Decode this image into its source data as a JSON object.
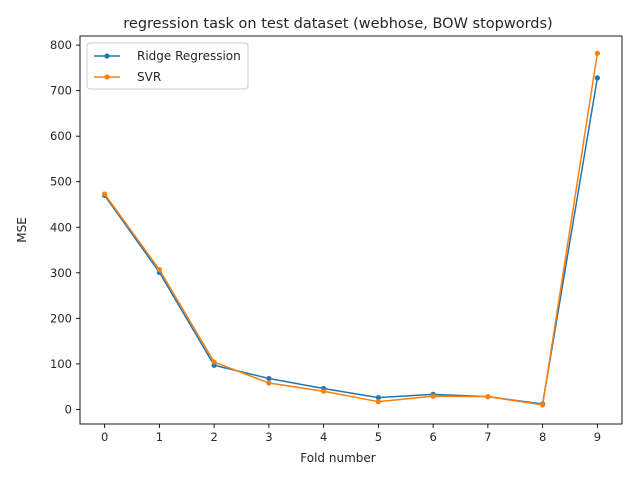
{
  "chart_data": {
    "type": "line",
    "title": "regression task on test dataset (webhose, BOW stopwords)",
    "xlabel": "Fold number",
    "ylabel": "MSE",
    "x": [
      0,
      1,
      2,
      3,
      4,
      5,
      6,
      7,
      8,
      9
    ],
    "xticks": [
      "0",
      "1",
      "2",
      "3",
      "4",
      "5",
      "6",
      "7",
      "8",
      "9"
    ],
    "yticks": [
      "0",
      "100",
      "200",
      "300",
      "400",
      "500",
      "600",
      "700",
      "800"
    ],
    "xlim": [
      -0.45,
      9.45
    ],
    "ylim": [
      -32,
      820
    ],
    "grid": false,
    "legend": "top-left",
    "series": [
      {
        "name": "Ridge Regression",
        "color": "#1f77b4",
        "values": [
          470,
          301,
          97,
          68,
          46,
          26,
          33,
          28,
          12,
          728
        ]
      },
      {
        "name": "SVR",
        "color": "#ff7f0e",
        "values": [
          473,
          307,
          104,
          58,
          40,
          17,
          29,
          28,
          10,
          782
        ]
      }
    ]
  }
}
